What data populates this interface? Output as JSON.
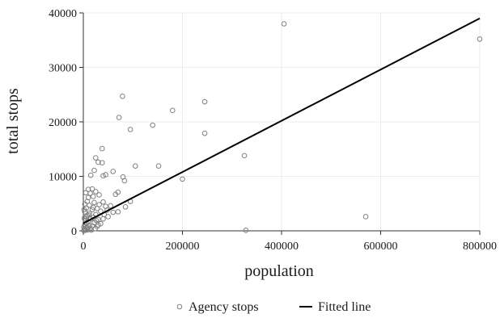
{
  "chart_data": {
    "type": "scatter",
    "xlabel": "population",
    "ylabel": "total stops",
    "xlim": [
      0,
      800000
    ],
    "ylim": [
      0,
      40000
    ],
    "x_ticks": [
      0,
      200000,
      400000,
      600000,
      800000
    ],
    "y_ticks": [
      0,
      10000,
      20000,
      30000,
      40000
    ],
    "x_tick_labels": [
      "0",
      "200000",
      "400000",
      "600000",
      "800000"
    ],
    "y_tick_labels": [
      "0",
      "10000",
      "20000",
      "30000",
      "40000"
    ],
    "grid": "horizontal and vertical, light",
    "legend_position": "bottom",
    "series": [
      {
        "name": "Agency stops",
        "kind": "scatter",
        "marker": "hollow circle",
        "color": "#808080",
        "points": [
          [
            405000,
            38000
          ],
          [
            800000,
            35200
          ],
          [
            79000,
            24700
          ],
          [
            245000,
            23700
          ],
          [
            180000,
            22100
          ],
          [
            72000,
            20800
          ],
          [
            140000,
            19400
          ],
          [
            95000,
            18600
          ],
          [
            245000,
            17900
          ],
          [
            38000,
            15100
          ],
          [
            25000,
            13400
          ],
          [
            325000,
            13800
          ],
          [
            30000,
            12600
          ],
          [
            38000,
            12500
          ],
          [
            152000,
            11900
          ],
          [
            105000,
            11900
          ],
          [
            22000,
            11100
          ],
          [
            60000,
            10900
          ],
          [
            15000,
            10200
          ],
          [
            45000,
            10300
          ],
          [
            40000,
            10100
          ],
          [
            80000,
            9900
          ],
          [
            200000,
            9500
          ],
          [
            83000,
            9200
          ],
          [
            10000,
            7600
          ],
          [
            18000,
            7700
          ],
          [
            5000,
            7000
          ],
          [
            25000,
            7200
          ],
          [
            14000,
            6900
          ],
          [
            70000,
            7100
          ],
          [
            65000,
            6700
          ],
          [
            32000,
            6600
          ],
          [
            20000,
            6300
          ],
          [
            10000,
            6100
          ],
          [
            3000,
            4900
          ],
          [
            8000,
            5400
          ],
          [
            22000,
            5200
          ],
          [
            40000,
            5300
          ],
          [
            95000,
            5400
          ],
          [
            12000,
            4700
          ],
          [
            45000,
            4500
          ],
          [
            55000,
            4600
          ],
          [
            85000,
            4400
          ],
          [
            6000,
            4200
          ],
          [
            28000,
            4100
          ],
          [
            18000,
            3900
          ],
          [
            35000,
            3600
          ],
          [
            60000,
            3400
          ],
          [
            70000,
            3500
          ],
          [
            3000,
            3500
          ],
          [
            12000,
            3200
          ],
          [
            25000,
            3000
          ],
          [
            42000,
            3000
          ],
          [
            8000,
            2800
          ],
          [
            20000,
            2500
          ],
          [
            50000,
            2600
          ],
          [
            2000,
            2300
          ],
          [
            15000,
            2200
          ],
          [
            30000,
            2100
          ],
          [
            5000,
            1900
          ],
          [
            10000,
            1700
          ],
          [
            22000,
            1500
          ],
          [
            35000,
            1300
          ],
          [
            3000,
            1200
          ],
          [
            12000,
            1000
          ],
          [
            18000,
            900
          ],
          [
            28000,
            800
          ],
          [
            1000,
            700
          ],
          [
            7000,
            600
          ],
          [
            14000,
            500
          ],
          [
            24000,
            400
          ],
          [
            2000,
            300
          ],
          [
            9000,
            200
          ],
          [
            4000,
            100
          ],
          [
            1000,
            50
          ],
          [
            16000,
            150
          ],
          [
            6000,
            2600
          ],
          [
            26000,
            1900
          ],
          [
            40000,
            2200
          ],
          [
            48000,
            3800
          ],
          [
            32000,
            4800
          ],
          [
            1500,
            3900
          ],
          [
            11000,
            2900
          ],
          [
            20000,
            4300
          ],
          [
            7000,
            1400
          ],
          [
            3500,
            800
          ],
          [
            30000,
            1100
          ],
          [
            570000,
            2600
          ],
          [
            328000,
            100
          ]
        ]
      },
      {
        "name": "Fitted line",
        "kind": "line",
        "color": "#000000",
        "points": [
          [
            0,
            1400
          ],
          [
            800000,
            39000
          ]
        ]
      }
    ]
  }
}
